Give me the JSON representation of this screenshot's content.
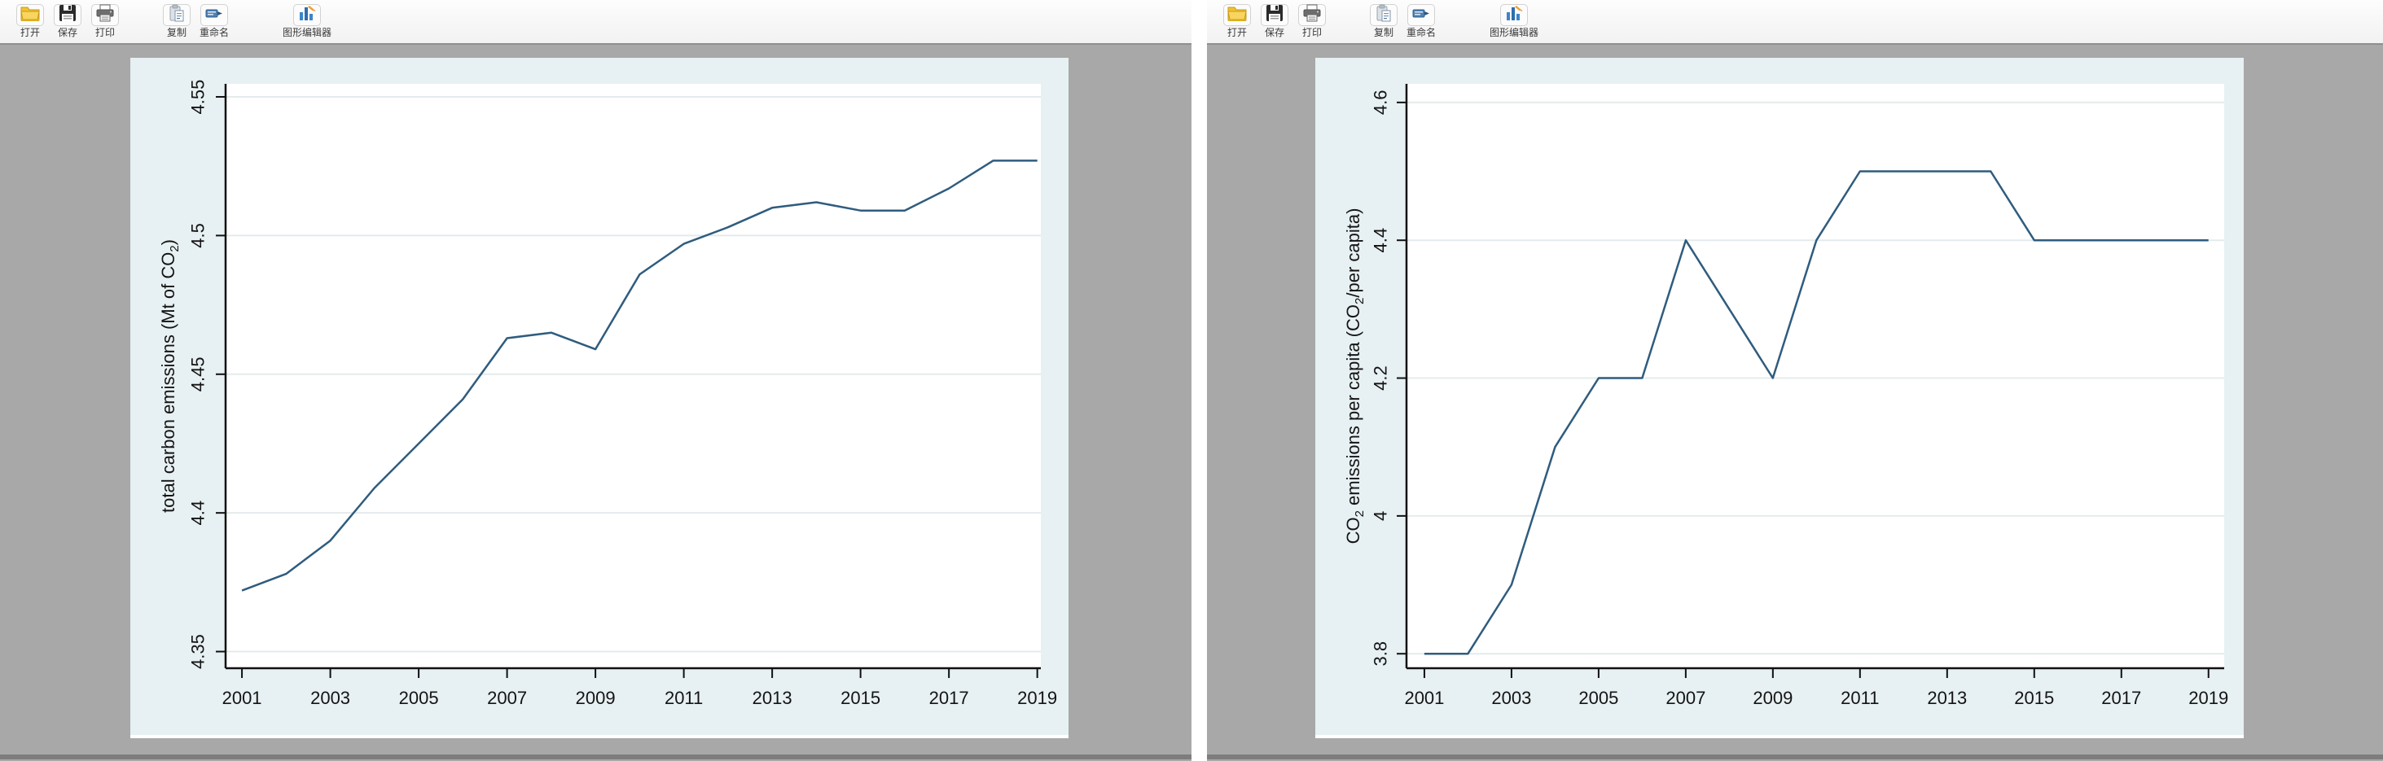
{
  "toolbar": {
    "buttons": [
      "打开",
      "保存",
      "打印",
      "复制",
      "重命名",
      "图形编辑器"
    ]
  },
  "colors": {
    "window_bg": "#a8a8a8",
    "toolbar_bg": "#f7f7f7",
    "graph_bg": "#e7f0f2",
    "plot_bg": "#ffffff",
    "grid": "#e4ebec",
    "axis": "#111111",
    "tick_text": "#141414",
    "line": "#2f5c7e"
  },
  "chart_data": [
    {
      "type": "line",
      "title": "",
      "xlabel": "",
      "ylabel": "total carbon emissions (Mt of CO₂)",
      "ylabel_parts": [
        {
          "t": "total carbon emissions (Mt of CO",
          "sub": false
        },
        {
          "t": "2",
          "sub": true
        },
        {
          "t": ")",
          "sub": false
        }
      ],
      "x": [
        2001,
        2002,
        2003,
        2004,
        2005,
        2006,
        2007,
        2008,
        2009,
        2010,
        2011,
        2012,
        2013,
        2014,
        2015,
        2016,
        2017,
        2018,
        2019
      ],
      "values": [
        4.372,
        4.378,
        4.39,
        4.409,
        4.425,
        4.441,
        4.463,
        4.465,
        4.459,
        4.486,
        4.497,
        4.503,
        4.51,
        4.512,
        4.509,
        4.509,
        4.517,
        4.527,
        4.527
      ],
      "xticks": [
        2001,
        2003,
        2005,
        2007,
        2009,
        2011,
        2013,
        2015,
        2017,
        2019
      ],
      "yticks": [
        4.35,
        4.4,
        4.45,
        4.5,
        4.55
      ],
      "ytick_labels": [
        "4.35",
        "4.4",
        "4.45",
        "4.5",
        "4.55"
      ],
      "xlim": [
        2000.63,
        2019.08
      ],
      "ylim": [
        4.344,
        4.5547
      ],
      "grid": true,
      "legend": "none"
    },
    {
      "type": "line",
      "title": "",
      "xlabel": "",
      "ylabel": "CO₂ emissions per capita (CO₂/per capita)",
      "ylabel_parts": [
        {
          "t": "CO",
          "sub": false
        },
        {
          "t": "2",
          "sub": true
        },
        {
          "t": " emissions per capita (CO",
          "sub": false
        },
        {
          "t": "2",
          "sub": true
        },
        {
          "t": "/per capita)",
          "sub": false
        }
      ],
      "x": [
        2001,
        2002,
        2003,
        2004,
        2005,
        2006,
        2007,
        2008,
        2009,
        2010,
        2011,
        2012,
        2013,
        2014,
        2015,
        2016,
        2017,
        2018,
        2019
      ],
      "values": [
        3.8,
        3.8,
        3.9,
        4.1,
        4.2,
        4.2,
        4.4,
        4.3,
        4.2,
        4.4,
        4.5,
        4.5,
        4.5,
        4.5,
        4.4,
        4.4,
        4.4,
        4.4,
        4.4
      ],
      "xticks": [
        2001,
        2003,
        2005,
        2007,
        2009,
        2011,
        2013,
        2015,
        2017,
        2019
      ],
      "yticks": [
        3.8,
        4.0,
        4.2,
        4.4,
        4.6
      ],
      "ytick_labels": [
        "3.8",
        "4",
        "4.2",
        "4.4",
        "4.6"
      ],
      "xlim": [
        2000.59,
        2019.36
      ],
      "ylim": [
        3.779,
        4.627
      ],
      "grid": true,
      "legend": "none"
    }
  ]
}
